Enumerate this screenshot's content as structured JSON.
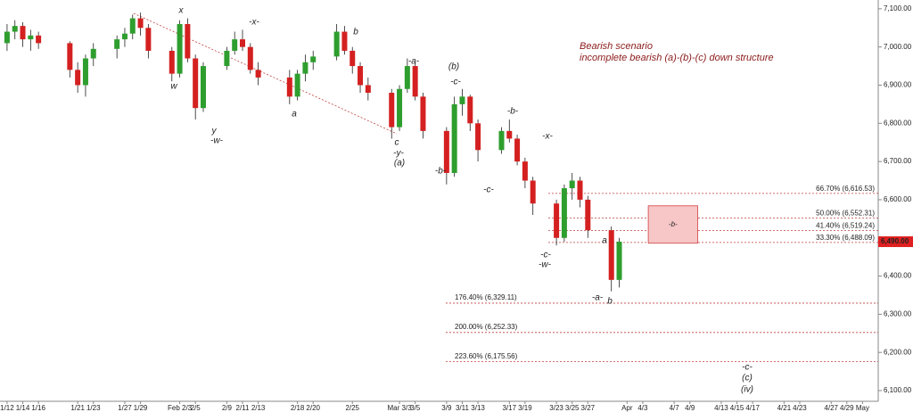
{
  "chart_data": {
    "type": "candlestick",
    "title": "Bearish scenario",
    "subtitle": "incomplete bearish (a)-(b)-(c) down structure",
    "x": [
      0,
      1,
      2,
      3,
      4,
      8,
      9,
      10,
      11,
      14,
      15,
      16,
      17,
      18,
      21,
      22,
      23,
      24,
      25,
      28,
      29,
      30,
      31,
      32,
      36,
      37,
      38,
      39,
      42,
      43,
      44,
      45,
      46,
      49,
      50,
      51,
      52,
      53,
      56,
      57,
      58,
      59,
      60,
      63,
      64,
      65,
      66,
      67,
      70,
      71,
      72,
      73,
      74,
      77,
      78
    ],
    "open": [
      7010,
      7040,
      7055,
      7020,
      7030,
      7010,
      6940,
      6900,
      6970,
      6995,
      7020,
      7035,
      7075,
      7050,
      6990,
      6930,
      7060,
      6970,
      6840,
      6950,
      6990,
      7020,
      7000,
      6940,
      6920,
      6870,
      6930,
      6960,
      6975,
      7040,
      6990,
      6950,
      6900,
      6880,
      6790,
      6890,
      6950,
      6870,
      6780,
      6670,
      6850,
      6870,
      6800,
      6730,
      6780,
      6760,
      6700,
      6650,
      6590,
      6500,
      6630,
      6650,
      6600,
      6520,
      6390
    ],
    "high": [
      7060,
      7070,
      7065,
      7045,
      7040,
      7015,
      6960,
      6980,
      7010,
      7030,
      7050,
      7085,
      7090,
      7060,
      7000,
      7070,
      7075,
      6980,
      6960,
      7000,
      7040,
      7045,
      7010,
      6960,
      6940,
      6940,
      6980,
      6990,
      7060,
      7055,
      7000,
      6960,
      6920,
      6890,
      6900,
      6970,
      6960,
      6880,
      6790,
      6870,
      6890,
      6875,
      6810,
      6790,
      6810,
      6770,
      6710,
      6660,
      6600,
      6640,
      6670,
      6660,
      6610,
      6530,
      6500
    ],
    "low": [
      6990,
      7020,
      7000,
      6990,
      6995,
      6920,
      6880,
      6870,
      6950,
      6970,
      7000,
      7020,
      7030,
      6970,
      6910,
      6920,
      6960,
      6810,
      6830,
      6940,
      6980,
      6990,
      6930,
      6900,
      6850,
      6860,
      6910,
      6940,
      6965,
      6980,
      6930,
      6880,
      6860,
      6760,
      6780,
      6880,
      6860,
      6760,
      6640,
      6660,
      6820,
      6780,
      6700,
      6720,
      6750,
      6690,
      6630,
      6560,
      6480,
      6490,
      6600,
      6580,
      6500,
      6360,
      6370
    ],
    "close": [
      7040,
      7055,
      7020,
      7030,
      7010,
      6940,
      6900,
      6970,
      6995,
      7020,
      7035,
      7075,
      7050,
      6990,
      6930,
      7060,
      6970,
      6840,
      6950,
      6990,
      7020,
      7000,
      6940,
      6920,
      6870,
      6930,
      6960,
      6975,
      7040,
      6990,
      6950,
      6900,
      6880,
      6790,
      6890,
      6950,
      6870,
      6780,
      6670,
      6850,
      6870,
      6800,
      6730,
      6780,
      6760,
      6700,
      6650,
      6590,
      6500,
      6630,
      6650,
      6600,
      6520,
      6390,
      6490
    ],
    "up_color": "#2e9e2e",
    "down_color": "#d42020",
    "xlim": [
      -0.9,
      111
    ],
    "ylim": [
      6072,
      7123
    ],
    "xticks": [
      {
        "value": 0,
        "label": "1/12"
      },
      {
        "value": 2,
        "label": "1/14"
      },
      {
        "value": 4,
        "label": "1/16"
      },
      {
        "value": 9,
        "label": "1/21"
      },
      {
        "value": 11,
        "label": "1/23"
      },
      {
        "value": 15,
        "label": "1/27"
      },
      {
        "value": 17,
        "label": "1/29"
      },
      {
        "value": 22,
        "label": "Feb 2/3"
      },
      {
        "value": 24,
        "label": "2/5"
      },
      {
        "value": 28,
        "label": "2/9"
      },
      {
        "value": 30,
        "label": "2/11"
      },
      {
        "value": 32,
        "label": "2/13"
      },
      {
        "value": 37,
        "label": "2/18"
      },
      {
        "value": 39,
        "label": "2/20"
      },
      {
        "value": 44,
        "label": "2/25"
      },
      {
        "value": 50,
        "label": "Mar 3/3"
      },
      {
        "value": 52,
        "label": "3/5"
      },
      {
        "value": 56,
        "label": "3/9"
      },
      {
        "value": 58,
        "label": "3/11"
      },
      {
        "value": 60,
        "label": "3/13"
      },
      {
        "value": 64,
        "label": "3/17"
      },
      {
        "value": 66,
        "label": "3/19"
      },
      {
        "value": 70,
        "label": "3/23"
      },
      {
        "value": 72,
        "label": "3/25"
      },
      {
        "value": 74,
        "label": "3/27"
      },
      {
        "value": 79,
        "label": "Apr"
      },
      {
        "value": 81,
        "label": "4/3"
      },
      {
        "value": 85,
        "label": "4/7"
      },
      {
        "value": 87,
        "label": "4/9"
      },
      {
        "value": 91,
        "label": "4/13"
      },
      {
        "value": 93,
        "label": "4/15"
      },
      {
        "value": 95,
        "label": "4/17"
      },
      {
        "value": 99,
        "label": "4/21"
      },
      {
        "value": 101,
        "label": "4/23"
      },
      {
        "value": 105,
        "label": "4/27"
      },
      {
        "value": 107,
        "label": "4/29"
      },
      {
        "value": 109,
        "label": "May"
      }
    ],
    "yticks": [
      {
        "value": 7100,
        "label": "7,100.00"
      },
      {
        "value": 7000,
        "label": "7,000.00"
      },
      {
        "value": 6900,
        "label": "6,900.00"
      },
      {
        "value": 6800,
        "label": "6,800.00"
      },
      {
        "value": 6700,
        "label": "6,700.00"
      },
      {
        "value": 6600,
        "label": "6,600.00"
      },
      {
        "value": 6400,
        "label": "6,400.00"
      },
      {
        "value": 6300,
        "label": "6,300.00"
      },
      {
        "value": 6200,
        "label": "6,200.00"
      },
      {
        "value": 6100,
        "label": "6,100.00"
      }
    ],
    "last_price": {
      "value": 6490,
      "label": "6,490.00"
    },
    "fib_levels": [
      {
        "value": 6616.53,
        "label": "66.70% (6,616.53)"
      },
      {
        "value": 6552.31,
        "label": "50.00% (6,552.31)"
      },
      {
        "value": 6519.24,
        "label": "41.40% (6,519.24)"
      },
      {
        "value": 6488.09,
        "label": "33.30% (6,488.09)"
      },
      {
        "value": 6329.11,
        "label": "176.40% (6,329.11)"
      },
      {
        "value": 6252.33,
        "label": "200.00% (6,252.33)"
      },
      {
        "value": 6175.56,
        "label": "223.60% (6,175.56)"
      }
    ],
    "target_box": {
      "label": "-b-",
      "range": [
        6486,
        6584
      ],
      "x": [
        81.7,
        88
      ]
    },
    "annotation_color": "#8b1a1a",
    "highlight_color": "#e02020",
    "annotations": [
      {
        "text": "x"
      },
      {
        "text": "-x-"
      },
      {
        "text": "w"
      },
      {
        "text": "y"
      },
      {
        "text": "-w-"
      },
      {
        "text": "a"
      },
      {
        "text": "b"
      },
      {
        "text": "-a-"
      },
      {
        "text": "(b)",
        "highlight": true
      },
      {
        "text": "-c-"
      },
      {
        "text": "c"
      },
      {
        "text": "-y-"
      },
      {
        "text": "(a)",
        "highlight": true
      },
      {
        "text": "-b-"
      },
      {
        "text": "-b-"
      },
      {
        "text": "-c-"
      },
      {
        "text": "-x-"
      },
      {
        "text": "-c-"
      },
      {
        "text": "-w-"
      },
      {
        "text": "a"
      },
      {
        "text": "-a-"
      },
      {
        "text": "b"
      },
      {
        "text": "-c-",
        "highlight": true
      },
      {
        "text": "(c)",
        "highlight": true
      },
      {
        "text": "(iv)",
        "highlight": true
      }
    ]
  }
}
